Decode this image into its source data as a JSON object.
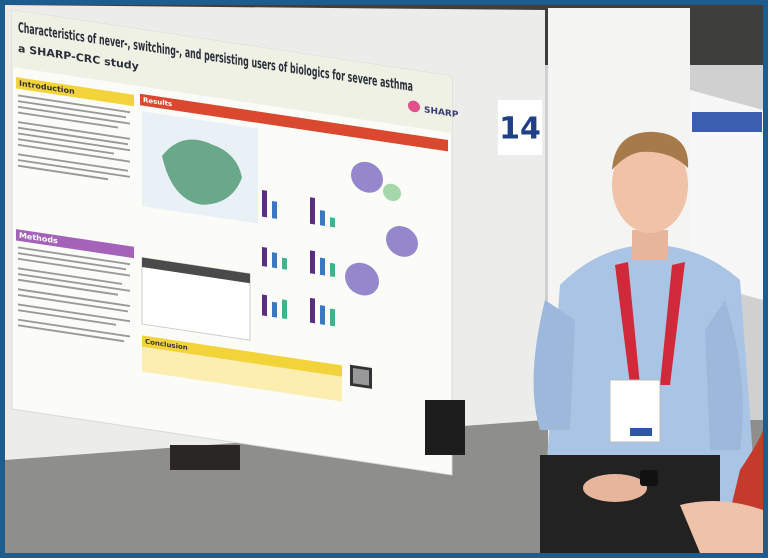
{
  "poster": {
    "title": "Characteristics of never-, switching-, and persisting users of biologics for severe asthma",
    "subtitle": "a SHARP-CRC study",
    "logo": "SHARP",
    "sections": {
      "introduction": "Introduction",
      "methods": "Methods",
      "results": "Results",
      "conclusion": "Conclusion"
    }
  },
  "booth_number": "14"
}
